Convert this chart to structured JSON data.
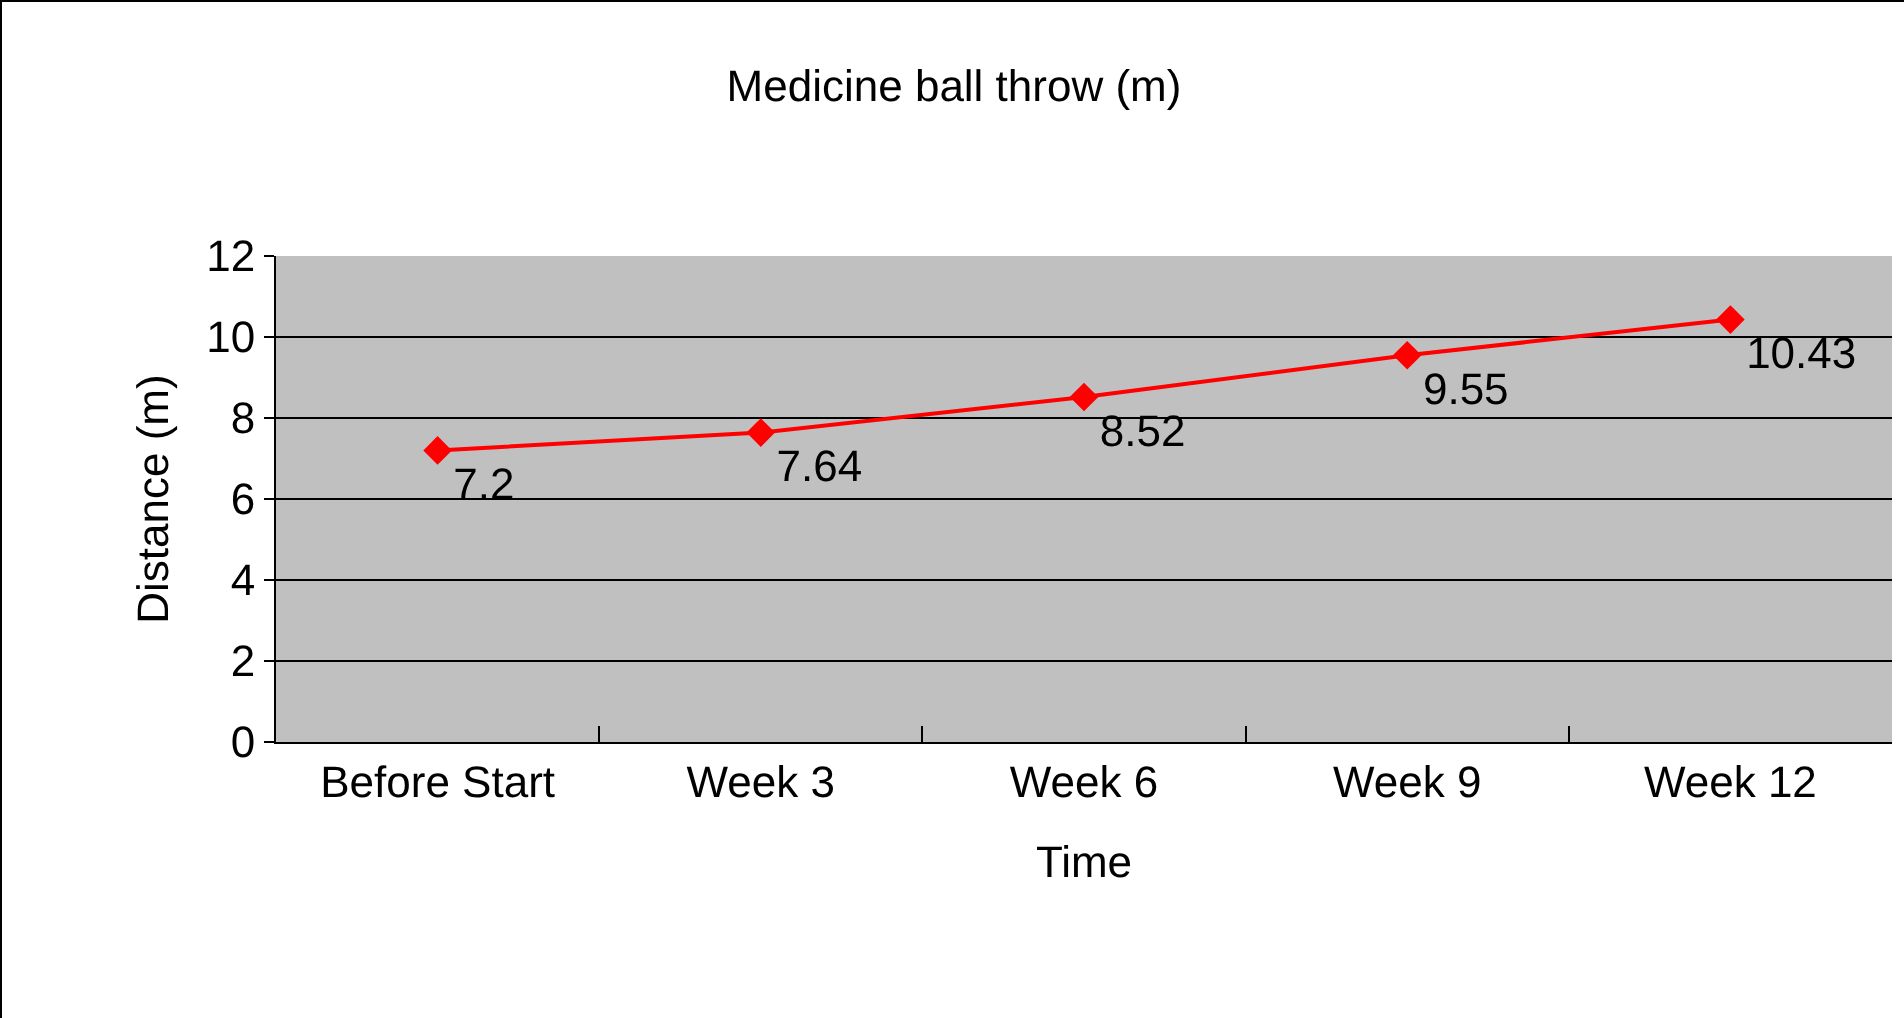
{
  "chart_data": {
    "type": "line",
    "title": "Medicine ball throw (m)",
    "xlabel": "Time",
    "ylabel": "Distance (m)",
    "categories": [
      "Before Start",
      "Week 3",
      "Week 6",
      "Week 9",
      "Week 12"
    ],
    "series": [
      {
        "color": "#ff0000",
        "values": [
          7.2,
          7.64,
          8.52,
          9.55,
          10.43
        ]
      }
    ],
    "ylim": [
      0,
      12
    ],
    "yticks": [
      0,
      2,
      4,
      6,
      8,
      10,
      12
    ],
    "grid": "y",
    "marker": "diamond",
    "line_style": "solid",
    "data_labels": true
  }
}
